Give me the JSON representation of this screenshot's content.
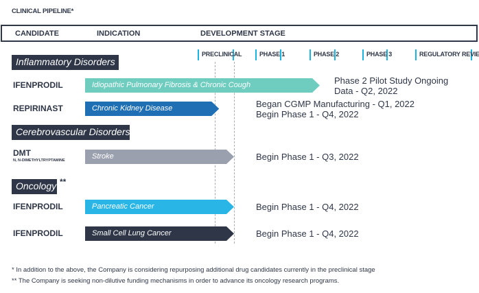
{
  "title": "CLINICAL PIPELINE*",
  "header": {
    "candidate": "CANDIDATE",
    "indication": "INDICATION",
    "development_stage": "DEVELOPMENT STAGE"
  },
  "colors": {
    "navy": "#2e3647",
    "stage_accent": "#1bb3e0"
  },
  "chart_data": {
    "type": "bar",
    "stages": [
      "PRECLINICAL",
      "PHASE 1",
      "PHASE 2",
      "PHASE 3",
      "REGULATORY REVIEW"
    ],
    "groups": [
      {
        "category": "Inflammatory Disorders",
        "stars": "",
        "rows": [
          {
            "candidate": "IFENPRODIL",
            "subtitle": "",
            "indication": "Idiopathic Pulmonary Fibrosis & Chronic Cough",
            "progress": 2.0,
            "color": "#6fcdc0",
            "status": [
              "Phase 2 Pilot Study Ongoing",
              "Data - Q2, 2022"
            ]
          },
          {
            "candidate": "REPIRINAST",
            "subtitle": "",
            "indication": "Chronic Kidney Disease",
            "progress": 0.9,
            "color": "#1f6fb5",
            "status": [
              "Began CGMP Manufacturing - Q1, 2022",
              "Begin Phase 1 - Q4, 2022"
            ]
          }
        ]
      },
      {
        "category": "Cerebrovascular Disorders",
        "stars": "",
        "rows": [
          {
            "candidate": "DMT",
            "subtitle": "N, N-DIMETHYLTRYPTAMINE",
            "indication": "Stroke",
            "progress": 1.0,
            "color": "#9aa0ad",
            "status": [
              "Begin Phase 1 - Q3, 2022"
            ]
          }
        ]
      },
      {
        "category": "Oncology",
        "stars": "**",
        "rows": [
          {
            "candidate": "IFENPRODIL",
            "subtitle": "",
            "indication": "Pancreatic Cancer",
            "progress": 1.0,
            "color": "#29b6e6",
            "status": [
              "Begin Phase 1 -  Q4, 2022"
            ]
          },
          {
            "candidate": "IFENPRODIL",
            "subtitle": "",
            "indication": "Small Cell Lung Cancer",
            "progress": 1.0,
            "color": "#2e3647",
            "status": [
              "Begin Phase 1 - Q4, 2022"
            ]
          }
        ]
      }
    ]
  },
  "footnotes": [
    "* In addition to the above, the Company is considering repurposing additional drug candidates currently in the preclinical stage",
    "** The Company is seeking non-dilutive funding mechanisms in order to advance its oncology research programs."
  ]
}
